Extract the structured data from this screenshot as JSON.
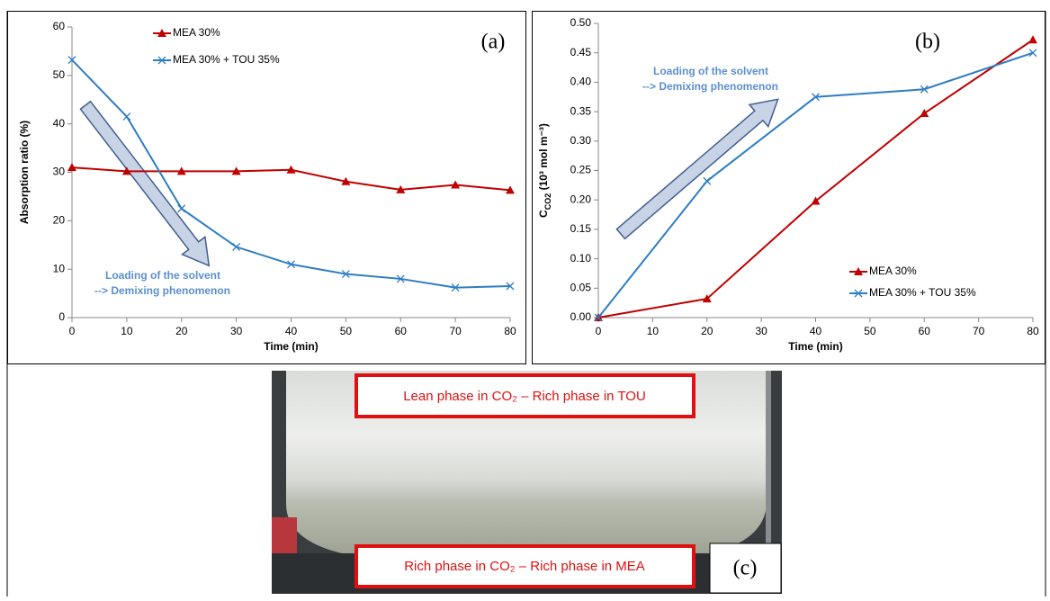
{
  "chart_data": [
    {
      "type": "line",
      "panel_label": "(a)",
      "xlabel": "Time (min)",
      "ylabel": "Absorption ratio (%)",
      "x": [
        0,
        10,
        20,
        30,
        40,
        50,
        60,
        70,
        80
      ],
      "series": [
        {
          "name": "MEA 30%",
          "color": "#c00000",
          "marker": "triangle",
          "values": [
            31,
            30.2,
            30.2,
            30.2,
            30.5,
            28.1,
            26.4,
            27.4,
            26.3
          ]
        },
        {
          "name": "MEA 30% + TOU 35%",
          "color": "#2e7dc4",
          "marker": "x",
          "values": [
            53.2,
            41.5,
            22.5,
            14.6,
            11,
            9,
            8,
            6.2,
            6.5
          ]
        }
      ],
      "xlim": [
        0,
        80
      ],
      "xticks": [
        0,
        10,
        20,
        30,
        40,
        50,
        60,
        70,
        80
      ],
      "ylim": [
        0,
        60
      ],
      "yticks": [
        0,
        10,
        20,
        30,
        40,
        50,
        60
      ],
      "legend": "upper center",
      "grid": false,
      "annotations": [
        "Loading of the solvent",
        "--> Demixing phenomenon"
      ]
    },
    {
      "type": "line",
      "panel_label": "(b)",
      "xlabel": "Time (min)",
      "ylabel": "C",
      "ylabel_subscript": "CO2",
      "ylabel_unit": " (10³ mol m⁻³)",
      "x": [
        0,
        20,
        40,
        60,
        80
      ],
      "series": [
        {
          "name": "MEA 30%",
          "color": "#c00000",
          "marker": "triangle",
          "values": [
            0,
            0.032,
            0.198,
            0.347,
            0.472
          ]
        },
        {
          "name": "MEA 30% + TOU 35%",
          "color": "#2e7dc4",
          "marker": "x",
          "values": [
            0,
            0.232,
            0.375,
            0.388,
            0.45
          ]
        }
      ],
      "xlim": [
        0,
        80
      ],
      "xticks": [
        0,
        10,
        20,
        30,
        40,
        50,
        60,
        70,
        80
      ],
      "ylim": [
        0,
        0.5
      ],
      "yticks": [
        {
          "value": 0,
          "label": "0.00"
        },
        0.05,
        {
          "value": 0.1,
          "label": "0.10"
        },
        0.15,
        {
          "value": 0.2,
          "label": "0.20"
        },
        0.25,
        {
          "value": 0.3,
          "label": "0.30"
        },
        0.35,
        {
          "value": 0.4,
          "label": "0.40"
        },
        0.45,
        {
          "value": 0.5,
          "label": "0.50"
        }
      ],
      "legend": "lower right",
      "grid": false,
      "annotations": [
        "Loading of the solvent",
        "--> Demixing phenomenon"
      ]
    }
  ],
  "photo": {
    "top_label": "Lean phase in CO₂ – Rich phase in TOU",
    "bottom_label": "Rich phase in CO₂ – Rich phase in MEA",
    "panel_label": "(c)"
  }
}
